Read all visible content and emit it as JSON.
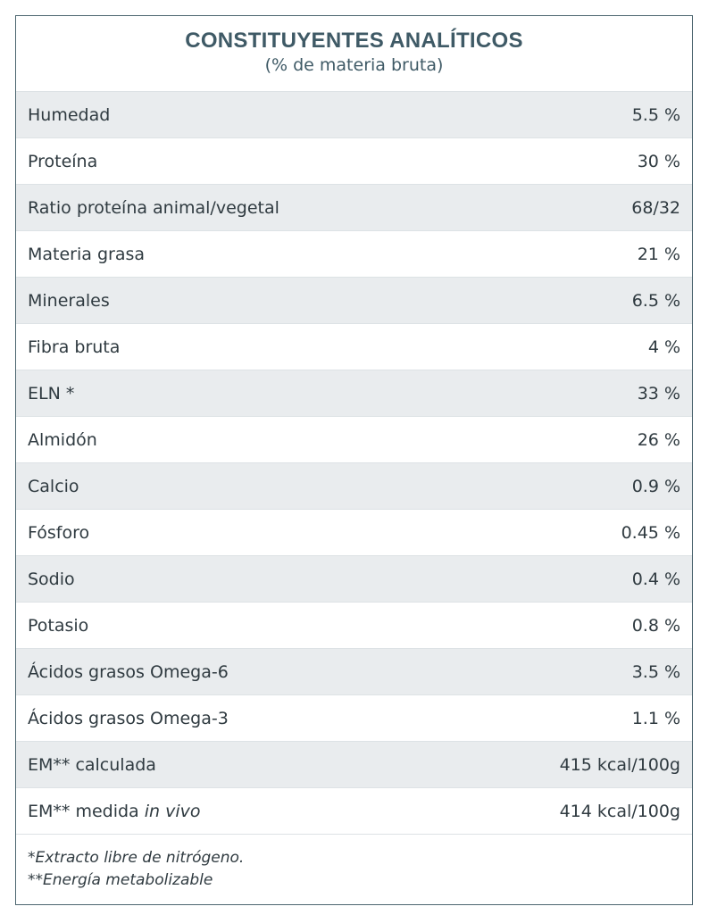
{
  "header": {
    "title": "CONSTITUYENTES ANALÍTICOS",
    "subtitle": "(% de materia bruta)"
  },
  "rows": [
    {
      "label": "Humedad",
      "value": "5.5 %"
    },
    {
      "label": "Proteína",
      "value": "30 %"
    },
    {
      "label": "Ratio proteína animal/vegetal",
      "value": "68/32"
    },
    {
      "label": "Materia grasa",
      "value": "21 %"
    },
    {
      "label": "Minerales",
      "value": "6.5 %"
    },
    {
      "label": "Fibra bruta",
      "value": "4 %"
    },
    {
      "label": "ELN *",
      "value": "33 %"
    },
    {
      "label": "Almidón",
      "value": "26 %"
    },
    {
      "label": "Calcio",
      "value": "0.9 %"
    },
    {
      "label": "Fósforo",
      "value": "0.45 %"
    },
    {
      "label": "Sodio",
      "value": "0.4 %"
    },
    {
      "label": "Potasio",
      "value": "0.8 %"
    },
    {
      "label": "Ácidos grasos Omega-6",
      "value": "3.5 %"
    },
    {
      "label": "Ácidos grasos Omega-3",
      "value": "1.1 %"
    },
    {
      "label": "EM** calculada",
      "value": "415 kcal/100g"
    },
    {
      "label": "EM** medida",
      "label_italic": "in vivo",
      "value": "414 kcal/100g"
    }
  ],
  "footnotes": {
    "note1": "*Extracto libre de nitrógeno.",
    "note2": "**Energía metabolizable"
  },
  "colors": {
    "title": "#3f5a66",
    "border": "#4d6670",
    "row_shaded": "#e9ecee",
    "text": "#2f3a40"
  }
}
